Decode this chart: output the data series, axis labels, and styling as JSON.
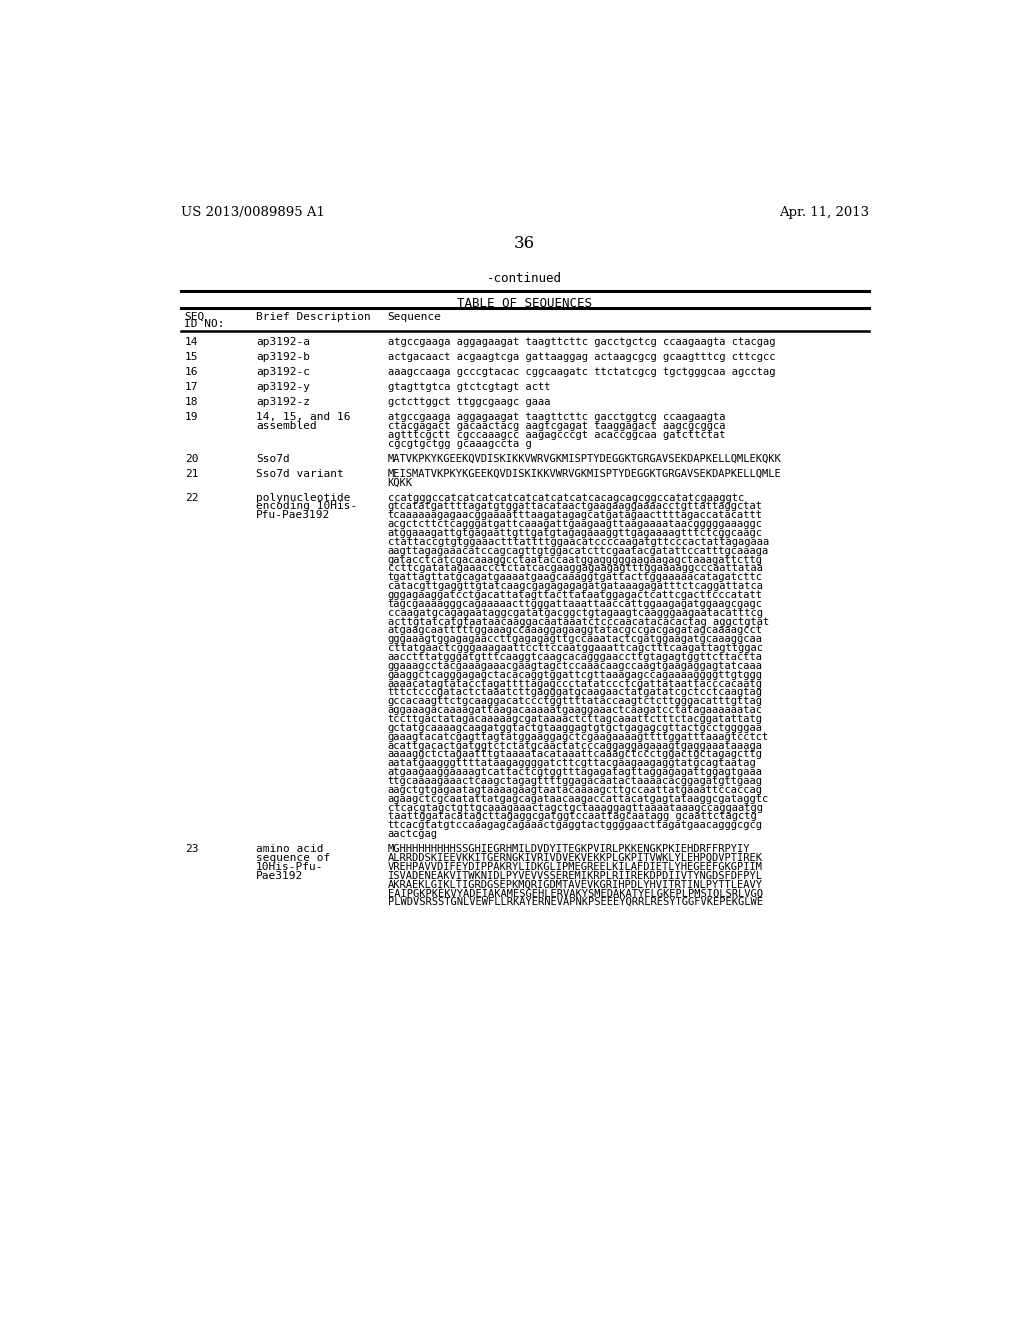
{
  "page_header_left": "US 2013/0089895 A1",
  "page_header_right": "Apr. 11, 2013",
  "page_number": "36",
  "continued_label": "-continued",
  "table_title": "TABLE OF SEQUENCES",
  "background_color": "#ffffff",
  "text_color": "#000000",
  "entries": [
    {
      "id": "14",
      "desc": "ap3192-a",
      "seq": "atgccgaaga aggagaagat taagttcttc gacctgctcg ccaagaagta ctacgag"
    },
    {
      "id": "15",
      "desc": "ap3192-b",
      "seq": "actgacaact acgaagtcga gattaaggag actaagcgcg gcaagtttcg cttcgcc"
    },
    {
      "id": "16",
      "desc": "ap3192-c",
      "seq": "aaagccaaga gcccgtacac cggcaagatc ttctatcgcg tgctgggcaa agcctag"
    },
    {
      "id": "17",
      "desc": "ap3192-y",
      "seq": "gtagttgtca gtctcgtagt actt"
    },
    {
      "id": "18",
      "desc": "ap3192-z",
      "seq": "gctcttggct ttggcgaagc gaaa"
    },
    {
      "id": "19",
      "desc": "14, 15, and 16\nassembled",
      "seq": "atgccgaaga aggagaagat taagttcttc gacctggtcg ccaagaagta\nctacgagact gacaactacg aagtcgagat taaggagact aagcgcggca\nagtttcgctt cgccaaagcc aagagcccgt acaccggcaa gatcttctat\ncgcgtgctgg gcaaagccta g"
    },
    {
      "id": "20",
      "desc": "Sso7d",
      "seq": "MATVKPKYKGEEKQVDISKIKKVWRVGKMISPTYDEGGKTGRGAVSEKDAPKELLQMLEKQKK"
    },
    {
      "id": "21",
      "desc": "Sso7d variant",
      "seq": "MEISMATVKPKYKGEEKQVDISKIKKVWRVGKMISPTYDEGGKTGRGAVSEKDAPKELLQMLE\nKQKK"
    },
    {
      "id": "22",
      "desc": "polynucleotide\nencoding 10His-\nPfu-Pae3192",
      "seq": "ccatgggccatcatcatcatcatcatcatcatcacagcagcggccatatcgaaggtc\ngtcatatgattttagatgtggattacataactgaagaaggaaaacctgttattaggctat\ntcaaaaaagagaacggaaaatttaagatagagcatgatagaacttttagaccatacattt\nacgctcttctcagggatgattcaaagattgaagaagttaagaaaataacgggggaaaggc\natggaaagattgtgagaattgttgatgtagagaaaggttgagaaaagtttctcggcaagc\nctattaccgtgtggaaactttattttggaacatccccaagatgttcccactattagagaaa\naagttagagaaacatccagcagttgtggacatcttcgaatacgatattccatttgcaaaga\ngatacctcatcgacaaaggcctaataccaatggagggggaagaagagctaaagattcttg\nccttcgatatagaaaccctctatcacgaaggagaagagtttggaaaaggcccaattataa\ntgattagttatgcagatgaaaatgaagcaaaggtgattacttggaaaaacatagatcttc\ncatacgttgaggttgtatcaagcgagagagagatgataaagagatttctcaggattatca\ngggagaaggatcctgacattatagttacttataatggagactcattcgacttcccatatt\ntagcgaaaagggcagaaaaacttgggattaaattaaccattggaagagatggaagcgagc\nccaagatgcagagaataggcgatatgacggctgtagaagtcaagggaagaatacatttcg\nacttgtatcatgtaataacaaggacaataaatctcccaacatacacactag aggctgtat\natgaagcaatttttggaaagccaaaggagaaggtatacgccgacgagatagcaaaagcct\ngggaaagtggagagaaccttgagagagttgccaaatactcgatggaagatgcaaaggcaa\ncttatgaactcgggaaagaattccttccaatggaaattcagctttcaagattagttggac\naacctttatgggatgtttcaaggtcaagcacagggaaccttgtagagtggttcttactta\nggaaagcctacgaaagaaacgaagtagctccaaacaagccaagtgaagaggagtatcaaa\ngaaggctcagggagagctacacaggtggattcgttaaagagccagaaaaggggttgtggg\naaaacatagtatacctagattttagagccctatatccctcgattataattacccacaatg\ntttctcccgatactctaaatcttgagggatgcaagaactatgatatcgctcctcaagtag\ngccacaagttctgcaaggacatccctggttttataccaagtctcttgggacatttgttag\naggaaagacaaaagattaagacaaaaatgaaggaaactcaagatcctatagaaaaaatac\ntccttgactatagacaaaaagcgataaaactcttagcaaattctttctacggatattatg\ngctatgcaaaagcaagatggtactgtaaggagtgtgctgagagcgttactgcctggggaa\ngaaagtacatcgagttagtatggaaggagctcgaagaaaagttttggatttaaagtcctct\nacattgacactgatggtctctatgcaactatcccaggaggagaaagtgaggaaataaaga\naaaaggctctagaatttgtaaaatacataaattcaaagctccctggactgctagagcttg\naatatgaagggttttataagaggggatcttcgttacgaagaagaggtatgcagtaatag\natgaagaaggaaaagtcattactcgtggtttagagatagttaggagagattggagtgaaa\nttgcaaaagaaactcaagctagagttttggagacaatactaaaacacggagatgttgaag\naagctgtgagaatagtaaaagaagtaatacaaaagcttgccaattatgaaattccaccag\nagaagctcgcaatattatgagcagataacaagaccattacatgagtataaggcgataggtc\nctcacgtagctgttgcaaagaaactagctgctaaaggagttaaaataaagccaggaatgg\ntaattggatacatagcttagaggcgatggtccaattagcaatagg gcaattctagctg\nttcacgtatgtccaaagagcagaaactgaggtactggggaacttagatgaacagggcgcg\naactcgag"
    },
    {
      "id": "23",
      "desc": "amino acid\nsequence of\n10His-Pfu-\nPae3192",
      "seq": "MGHHHHHHHHHSSGHIEGRHMILDVDYITEGKPVIRLPKKENGKPKIEHDRFFRPYIY\nALRRDDSKIEEVKKITGERNGKIVRIVDVEKVEKKPLGKPITVWKLYLEHPQDVPTIREK\nVREHPAVVDIFEYDIPPAKRYLIDKGLIPMEGREELKILAFDIETLYHEGEEFGKGPIIM\nISVADENEAKVITWKNIDLPYVEVVSSEREMIKRPLRIIREKDPDIIVTYNGDSFDFPYL\nAKRAEKLGIKLTIGRDGSEPKMQRIGDMTAVEVKGRIHPDLYHVITRTINLPYTTLEAVY\nEAIPGKPKEKVYADEIAKAMESGEHLERVAKYSMEDAKATYELGKEPLPMSIQLSRLVGQ\nPLWDVSRSSTGNLVEWFLLRKAYERNEVAPNKPSEEEYQRRLRESYTGGFVKEPEKGLWE"
    }
  ]
}
